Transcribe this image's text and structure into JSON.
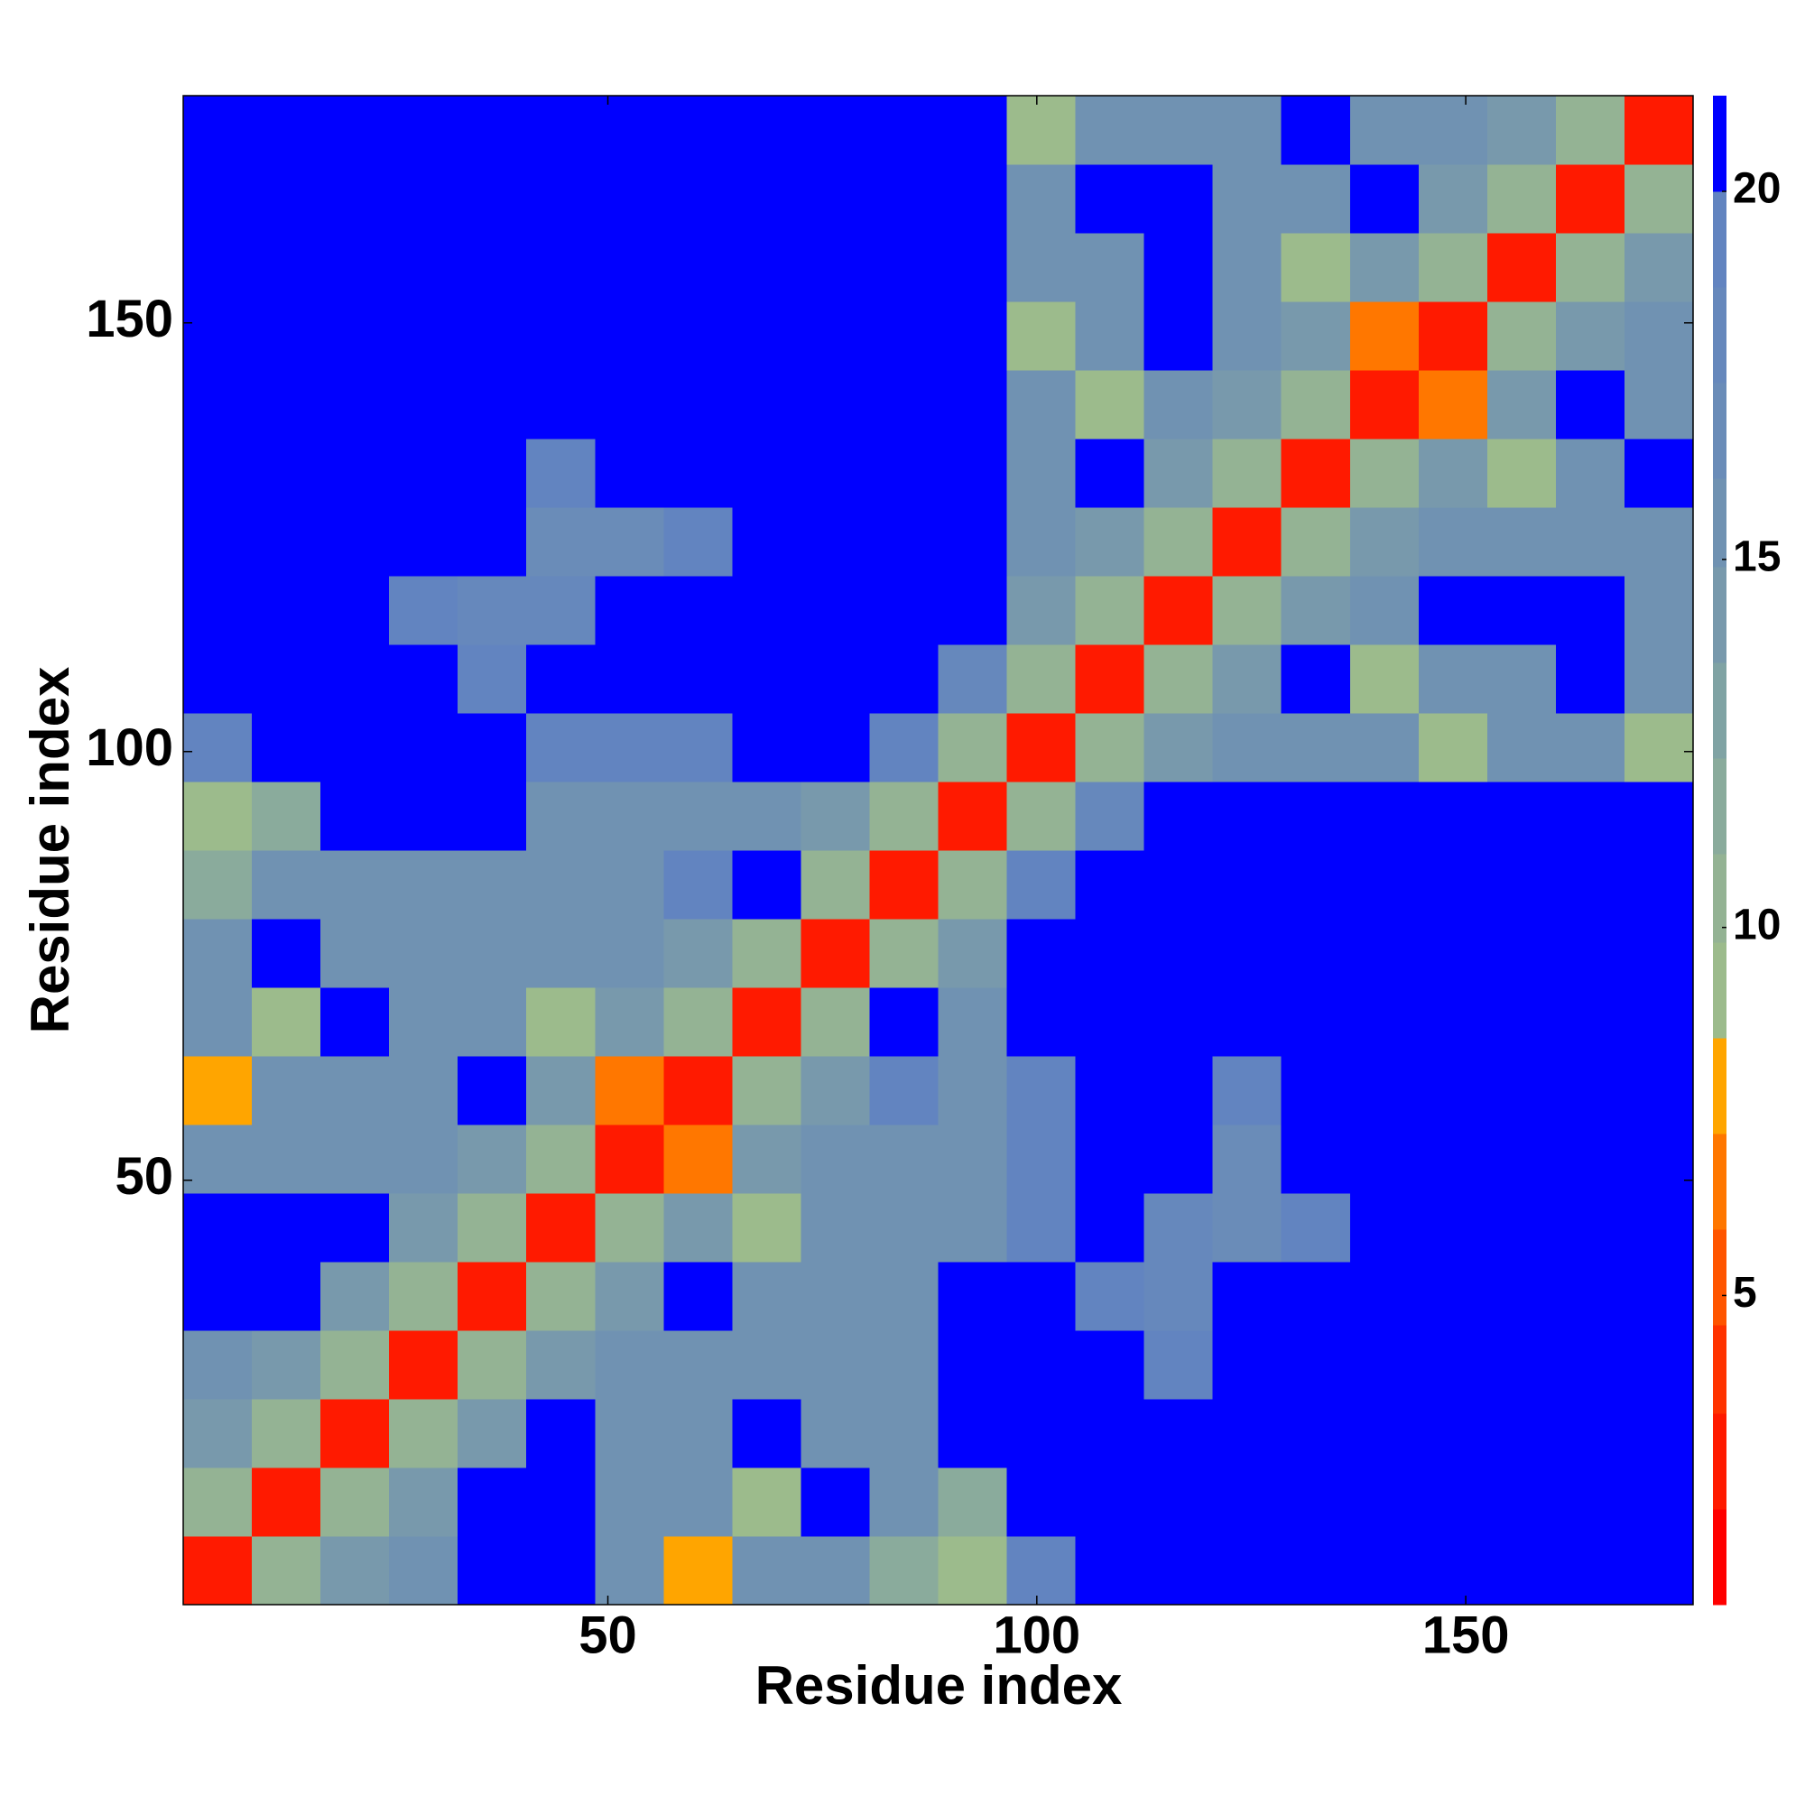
{
  "chart_data": {
    "type": "heatmap",
    "xlabel": "Residue index",
    "ylabel": "Residue index",
    "xlim": [
      0.5,
      176.5
    ],
    "ylim": [
      0.5,
      176.5
    ],
    "xticks": [
      50,
      100,
      150
    ],
    "yticks": [
      50,
      100,
      150
    ],
    "z": [
      [
        3,
        10,
        14,
        15,
        21,
        21,
        15,
        8,
        15,
        15,
        12,
        9,
        19,
        21,
        21,
        21,
        21,
        21,
        21,
        21,
        21,
        21
      ],
      [
        10,
        3,
        10,
        14,
        21,
        21,
        15,
        15,
        9,
        21,
        15,
        12,
        21,
        21,
        21,
        21,
        21,
        21,
        21,
        21,
        21,
        21
      ],
      [
        14,
        10,
        3,
        10,
        14,
        21,
        15,
        15,
        21,
        16,
        15,
        21,
        21,
        21,
        21,
        21,
        21,
        21,
        21,
        21,
        21,
        21
      ],
      [
        15,
        14,
        10,
        3,
        10,
        14,
        15,
        15,
        15,
        16,
        15,
        21,
        21,
        21,
        19,
        21,
        21,
        21,
        21,
        21,
        21,
        21
      ],
      [
        21,
        21,
        14,
        10,
        3,
        10,
        14,
        21,
        15,
        15,
        16,
        21,
        21,
        19,
        18,
        21,
        21,
        21,
        21,
        21,
        21,
        21
      ],
      [
        21,
        21,
        21,
        14,
        10,
        3,
        10,
        14,
        9,
        16,
        15,
        16,
        19,
        21,
        18,
        17,
        19,
        21,
        21,
        21,
        21,
        21
      ],
      [
        15,
        15,
        15,
        15,
        14,
        10,
        3,
        7,
        14,
        15,
        16,
        16,
        19,
        21,
        21,
        17,
        21,
        21,
        21,
        21,
        21,
        21
      ],
      [
        8,
        15,
        15,
        15,
        21,
        14,
        7,
        3,
        10,
        14,
        20,
        16,
        19,
        21,
        21,
        20,
        21,
        21,
        21,
        21,
        21,
        21
      ],
      [
        15,
        9,
        21,
        15,
        15,
        9,
        14,
        10,
        3,
        10,
        21,
        16,
        21,
        21,
        21,
        21,
        21,
        21,
        21,
        21,
        21,
        21
      ],
      [
        15,
        21,
        16,
        16,
        15,
        16,
        15,
        14,
        10,
        3,
        10,
        14,
        21,
        21,
        21,
        21,
        21,
        21,
        21,
        21,
        21,
        21
      ],
      [
        12,
        15,
        15,
        15,
        16,
        15,
        16,
        20,
        21,
        10,
        3,
        10,
        19,
        21,
        21,
        21,
        21,
        21,
        21,
        21,
        21,
        21
      ],
      [
        9,
        12,
        21,
        21,
        21,
        16,
        16,
        16,
        16,
        14,
        10,
        3,
        10,
        18,
        21,
        21,
        21,
        21,
        21,
        21,
        21,
        21
      ],
      [
        19,
        21,
        21,
        21,
        21,
        19,
        19,
        19,
        21,
        21,
        19,
        10,
        3,
        10,
        14,
        15,
        15,
        16,
        9,
        15,
        16,
        9
      ],
      [
        21,
        21,
        21,
        21,
        19,
        21,
        21,
        21,
        21,
        21,
        21,
        18,
        10,
        3,
        10,
        14,
        21,
        9,
        15,
        15,
        21,
        15
      ],
      [
        21,
        21,
        21,
        19,
        18,
        18,
        21,
        21,
        21,
        21,
        21,
        21,
        14,
        10,
        3,
        10,
        14,
        15,
        21,
        21,
        21,
        15
      ],
      [
        21,
        21,
        21,
        21,
        21,
        17,
        17,
        20,
        21,
        21,
        21,
        21,
        15,
        14,
        10,
        3,
        10,
        14,
        15,
        15,
        16,
        15
      ],
      [
        21,
        21,
        21,
        21,
        21,
        19,
        21,
        21,
        21,
        21,
        21,
        21,
        15,
        21,
        14,
        10,
        3,
        10,
        14,
        9,
        15,
        21
      ],
      [
        21,
        21,
        21,
        21,
        21,
        21,
        21,
        21,
        21,
        21,
        21,
        21,
        16,
        9,
        15,
        14,
        10,
        3,
        7,
        14,
        21,
        15
      ],
      [
        21,
        21,
        21,
        21,
        21,
        21,
        21,
        21,
        21,
        21,
        21,
        21,
        9,
        15,
        21,
        15,
        14,
        7,
        3,
        10,
        14,
        15
      ],
      [
        21,
        21,
        21,
        21,
        21,
        21,
        21,
        21,
        21,
        21,
        21,
        21,
        15,
        15,
        21,
        15,
        9,
        14,
        10,
        3,
        10,
        14
      ],
      [
        21,
        21,
        21,
        21,
        21,
        21,
        21,
        21,
        21,
        21,
        21,
        21,
        16,
        21,
        21,
        16,
        15,
        21,
        14,
        10,
        3,
        10
      ],
      [
        21,
        21,
        21,
        21,
        21,
        21,
        21,
        21,
        21,
        21,
        21,
        21,
        9,
        15,
        15,
        15,
        21,
        15,
        15,
        14,
        10,
        3
      ]
    ],
    "colorbar": {
      "levels": [
        0.8,
        2.1,
        3.4,
        4.6,
        5.9,
        7.2,
        8.5,
        9.8,
        11.0,
        12.3,
        13.6,
        14.9,
        16.1,
        17.4,
        18.7,
        20.0,
        21.3
      ],
      "colors": [
        "#ff0000",
        "#ff1a00",
        "#ff3300",
        "#ff5500",
        "#ff7700",
        "#ffa500",
        "#9cbb8c",
        "#94b394",
        "#8aab9c",
        "#80a3a4",
        "#7899ac",
        "#7092b2",
        "#6a8cb8",
        "#6688bc",
        "#6284c0",
        "#0000ff"
      ],
      "ticks": [
        5,
        10,
        15,
        20
      ]
    }
  }
}
